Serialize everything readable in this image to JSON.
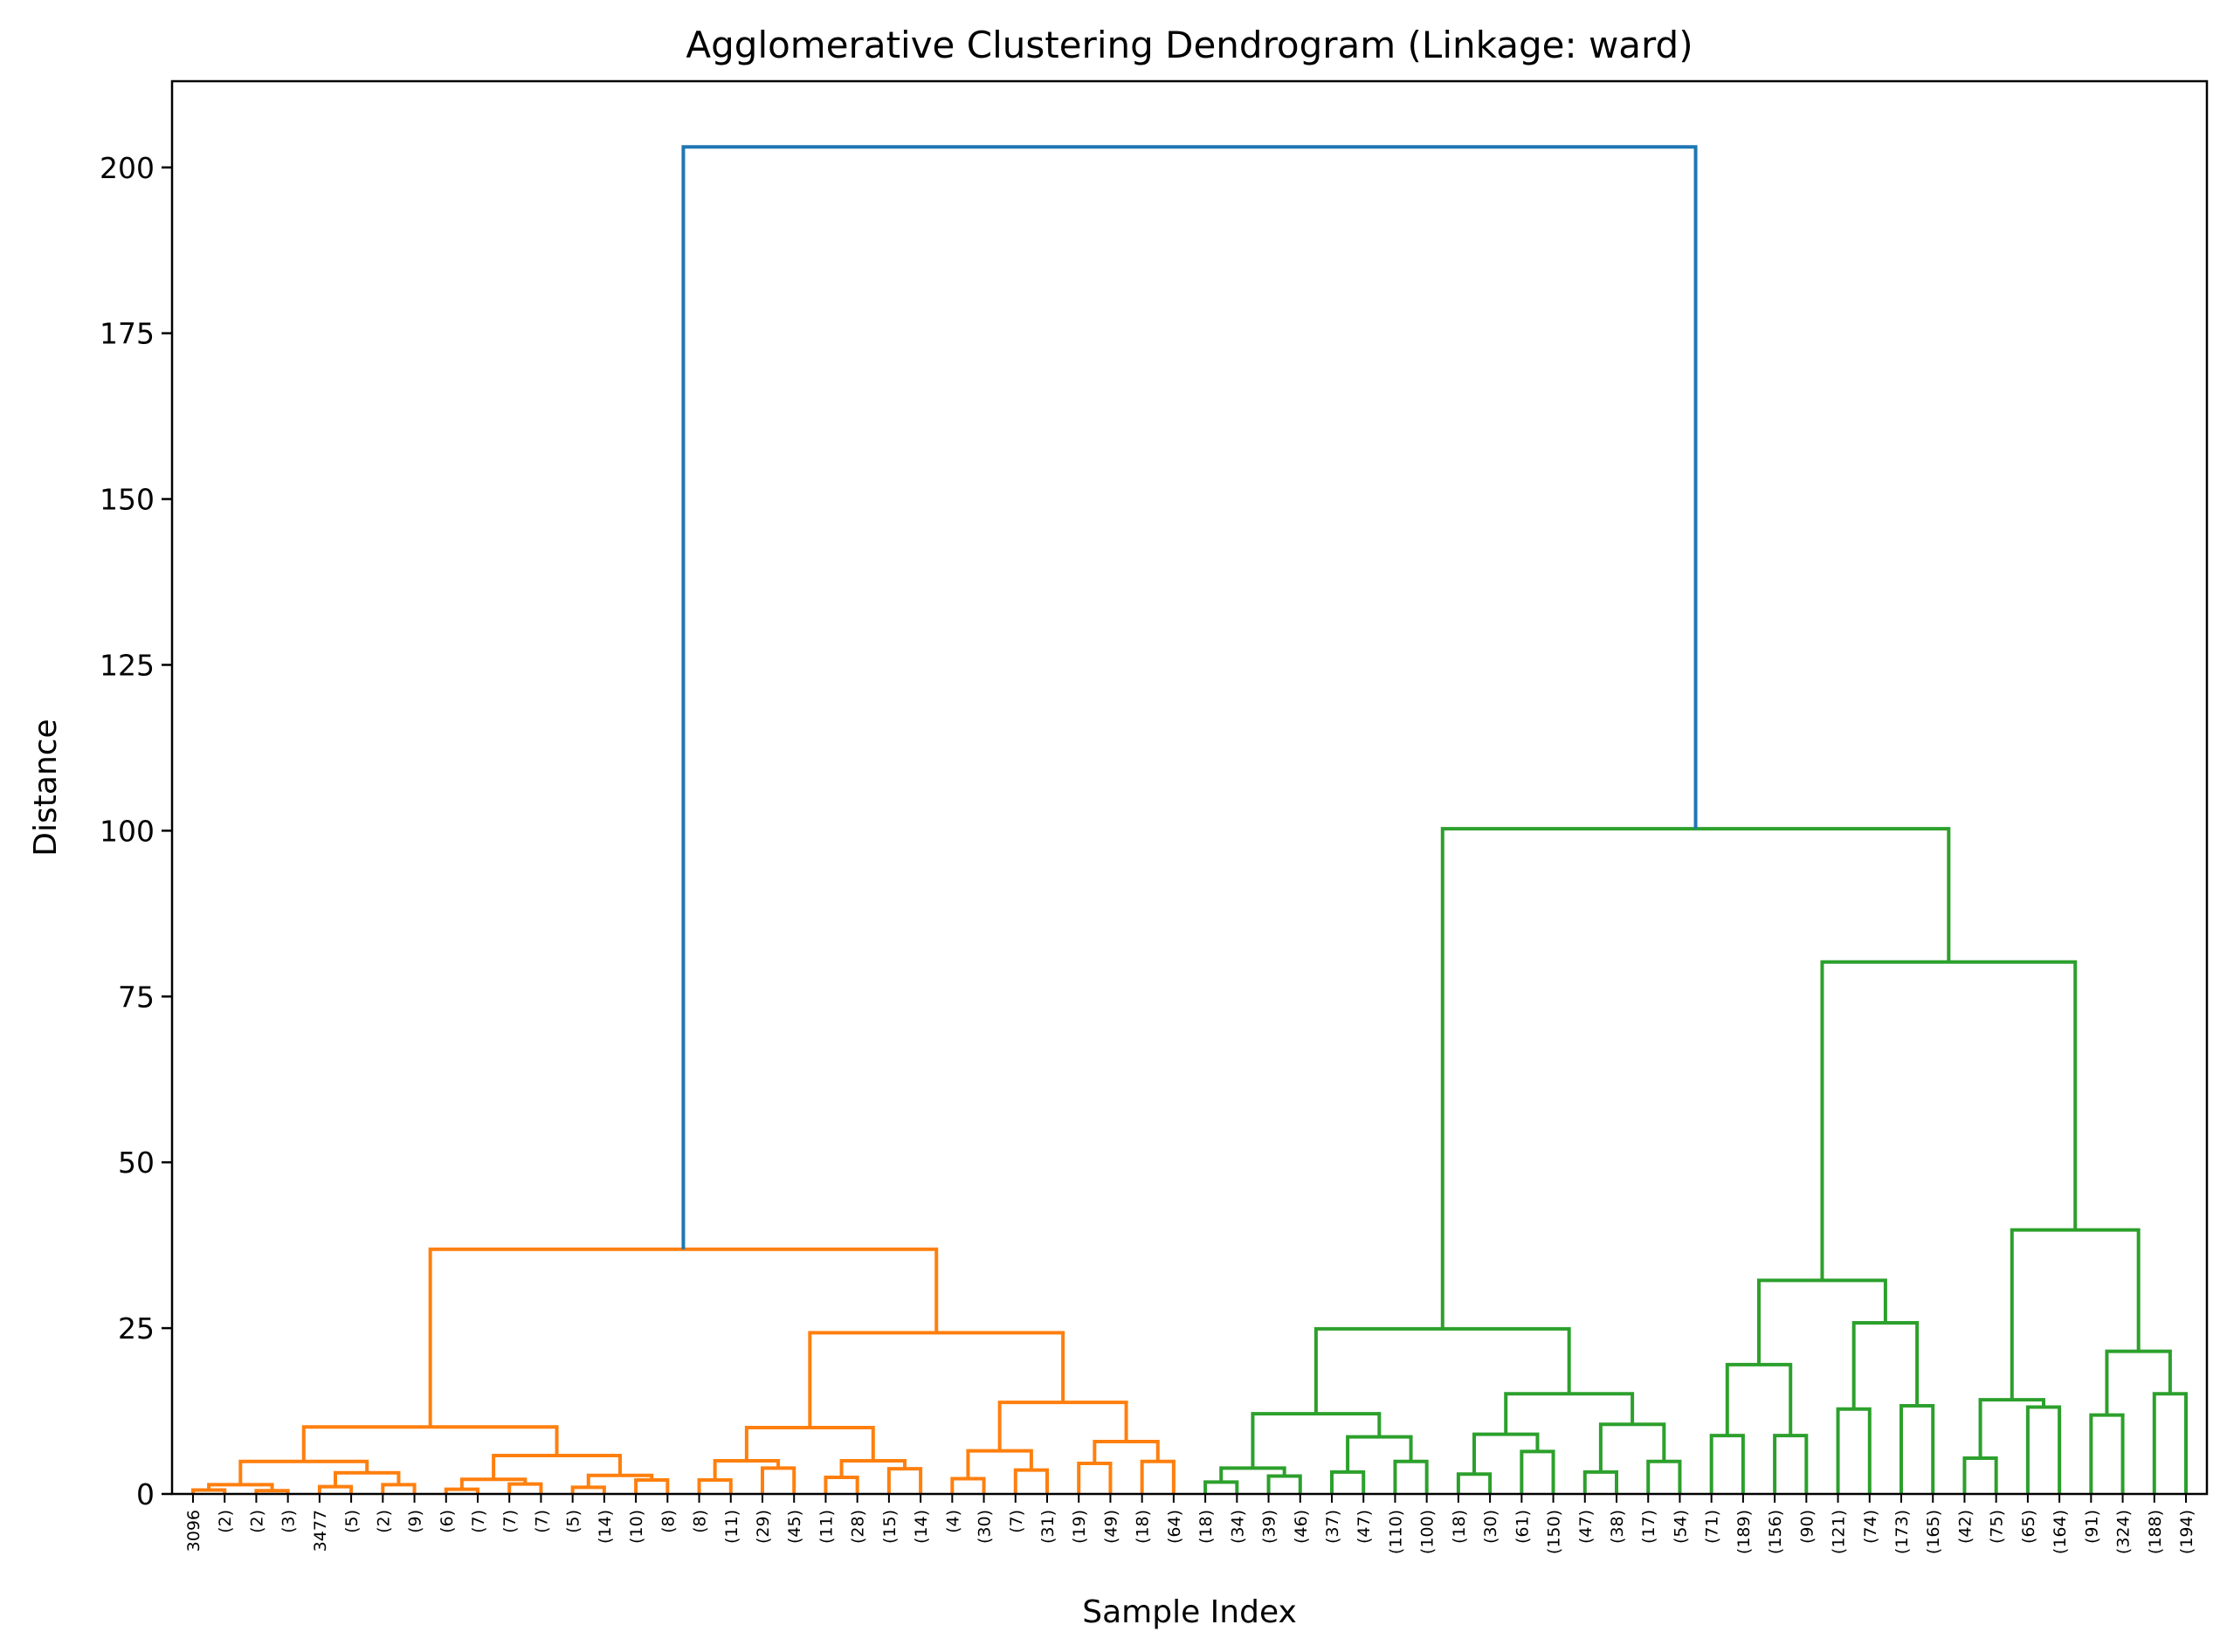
{
  "chart_data": {
    "type": "dendrogram",
    "title": "Agglomerative Clustering Dendrogram (Linkage: ward)",
    "xlabel": "Sample Index",
    "ylabel": "Distance",
    "ylim": [
      0,
      213
    ],
    "yticks": [
      0,
      25,
      50,
      75,
      100,
      125,
      150,
      175,
      200
    ],
    "grid": false,
    "colors": {
      "root": "#1f77b4",
      "cluster1": "#ff7f0e",
      "cluster2": "#2ca02c"
    },
    "leaves": [
      "3096",
      "(2)",
      "(2)",
      "(3)",
      "3477",
      "(5)",
      "(2)",
      "(9)",
      "(6)",
      "(7)",
      "(7)",
      "(7)",
      "(5)",
      "(14)",
      "(10)",
      "(8)",
      "(8)",
      "(11)",
      "(29)",
      "(45)",
      "(11)",
      "(28)",
      "(15)",
      "(14)",
      "(4)",
      "(30)",
      "(7)",
      "(31)",
      "(19)",
      "(49)",
      "(18)",
      "(64)",
      "(18)",
      "(34)",
      "(39)",
      "(46)",
      "(37)",
      "(47)",
      "(110)",
      "(100)",
      "(18)",
      "(30)",
      "(61)",
      "(150)",
      "(47)",
      "(38)",
      "(17)",
      "(54)",
      "(71)",
      "(189)",
      "(156)",
      "(90)",
      "(121)",
      "(74)",
      "(173)",
      "(165)",
      "(42)",
      "(75)",
      "(65)",
      "(164)",
      "(91)",
      "(324)",
      "(188)",
      "(194)"
    ],
    "links": [
      {
        "left": 0,
        "right": 1,
        "height": 0.6,
        "color": "cluster1"
      },
      {
        "left": 2,
        "right": 3,
        "height": 0.5,
        "color": "cluster1"
      },
      {
        "left": "L0",
        "right": "L1",
        "height": 1.4,
        "color": "cluster1"
      },
      {
        "left": 4,
        "right": 5,
        "height": 1.1,
        "color": "cluster1"
      },
      {
        "left": 6,
        "right": 7,
        "height": 1.4,
        "color": "cluster1"
      },
      {
        "left": "L3",
        "right": "L4",
        "height": 3.2,
        "color": "cluster1"
      },
      {
        "left": "L2",
        "right": "L5",
        "height": 4.9,
        "color": "cluster1"
      },
      {
        "left": 8,
        "right": 9,
        "height": 0.7,
        "color": "cluster1"
      },
      {
        "left": 10,
        "right": 11,
        "height": 1.5,
        "color": "cluster1"
      },
      {
        "left": "L7",
        "right": "L8",
        "height": 2.2,
        "color": "cluster1"
      },
      {
        "left": 12,
        "right": 13,
        "height": 1.0,
        "color": "cluster1"
      },
      {
        "left": 14,
        "right": 15,
        "height": 2.1,
        "color": "cluster1"
      },
      {
        "left": "L10",
        "right": "L11",
        "height": 2.8,
        "color": "cluster1"
      },
      {
        "left": "L9",
        "right": "L12",
        "height": 5.8,
        "color": "cluster1"
      },
      {
        "left": "L6",
        "right": "L13",
        "height": 10.1,
        "color": "cluster1"
      },
      {
        "left": 16,
        "right": 17,
        "height": 2.1,
        "color": "cluster1"
      },
      {
        "left": 18,
        "right": 19,
        "height": 3.9,
        "color": "cluster1"
      },
      {
        "left": "L15",
        "right": "L16",
        "height": 5.0,
        "color": "cluster1"
      },
      {
        "left": 20,
        "right": 21,
        "height": 2.5,
        "color": "cluster1"
      },
      {
        "left": 22,
        "right": 23,
        "height": 3.8,
        "color": "cluster1"
      },
      {
        "left": "L18",
        "right": "L19",
        "height": 5.0,
        "color": "cluster1"
      },
      {
        "left": "L17",
        "right": "L20",
        "height": 10.0,
        "color": "cluster1"
      },
      {
        "left": 24,
        "right": 25,
        "height": 2.3,
        "color": "cluster1"
      },
      {
        "left": 26,
        "right": 27,
        "height": 3.6,
        "color": "cluster1"
      },
      {
        "left": "L22",
        "right": "L23",
        "height": 6.5,
        "color": "cluster1"
      },
      {
        "left": 28,
        "right": 29,
        "height": 4.6,
        "color": "cluster1"
      },
      {
        "left": 30,
        "right": 31,
        "height": 4.9,
        "color": "cluster1"
      },
      {
        "left": "L25",
        "right": "L26",
        "height": 7.9,
        "color": "cluster1"
      },
      {
        "left": "L24",
        "right": "L27",
        "height": 13.8,
        "color": "cluster1"
      },
      {
        "left": "L21",
        "right": "L28",
        "height": 24.3,
        "color": "cluster1"
      },
      {
        "left": "L14",
        "right": "L29",
        "height": 36.9,
        "color": "cluster1"
      },
      {
        "left": 32,
        "right": 33,
        "height": 1.8,
        "color": "cluster2"
      },
      {
        "left": 34,
        "right": 35,
        "height": 2.7,
        "color": "cluster2"
      },
      {
        "left": "L31",
        "right": "L32",
        "height": 3.9,
        "color": "cluster2"
      },
      {
        "left": 36,
        "right": 37,
        "height": 3.3,
        "color": "cluster2"
      },
      {
        "left": 38,
        "right": 39,
        "height": 4.9,
        "color": "cluster2"
      },
      {
        "left": "L34",
        "right": "L35",
        "height": 8.6,
        "color": "cluster2"
      },
      {
        "left": "L33",
        "right": "L36",
        "height": 12.1,
        "color": "cluster2"
      },
      {
        "left": 40,
        "right": 41,
        "height": 3.0,
        "color": "cluster2"
      },
      {
        "left": 42,
        "right": 43,
        "height": 6.4,
        "color": "cluster2"
      },
      {
        "left": "L38",
        "right": "L39",
        "height": 9.0,
        "color": "cluster2"
      },
      {
        "left": 44,
        "right": 45,
        "height": 3.3,
        "color": "cluster2"
      },
      {
        "left": 46,
        "right": 47,
        "height": 4.9,
        "color": "cluster2"
      },
      {
        "left": "L41",
        "right": "L42",
        "height": 10.5,
        "color": "cluster2"
      },
      {
        "left": "L40",
        "right": "L43",
        "height": 15.1,
        "color": "cluster2"
      },
      {
        "left": "L37",
        "right": "L44",
        "height": 24.9,
        "color": "cluster2"
      },
      {
        "left": 48,
        "right": 49,
        "height": 8.8,
        "color": "cluster2"
      },
      {
        "left": 50,
        "right": 51,
        "height": 8.8,
        "color": "cluster2"
      },
      {
        "left": "L46",
        "right": "L47",
        "height": 19.5,
        "color": "cluster2"
      },
      {
        "left": 52,
        "right": 53,
        "height": 12.8,
        "color": "cluster2"
      },
      {
        "left": 54,
        "right": 55,
        "height": 13.3,
        "color": "cluster2"
      },
      {
        "left": "L49",
        "right": "L50",
        "height": 25.8,
        "color": "cluster2"
      },
      {
        "left": "L48",
        "right": "L51",
        "height": 32.2,
        "color": "cluster2"
      },
      {
        "left": 56,
        "right": 57,
        "height": 5.4,
        "color": "cluster2"
      },
      {
        "left": 58,
        "right": 59,
        "height": 13.1,
        "color": "cluster2"
      },
      {
        "left": "L53",
        "right": "L54",
        "height": 14.2,
        "color": "cluster2"
      },
      {
        "left": 60,
        "right": 61,
        "height": 11.9,
        "color": "cluster2"
      },
      {
        "left": 62,
        "right": 63,
        "height": 15.1,
        "color": "cluster2"
      },
      {
        "left": "L56",
        "right": "L57",
        "height": 21.5,
        "color": "cluster2"
      },
      {
        "left": "L55",
        "right": "L58",
        "height": 39.8,
        "color": "cluster2"
      },
      {
        "left": "L52",
        "right": "L59",
        "height": 80.2,
        "color": "cluster2"
      },
      {
        "left": "L45",
        "right": "L60",
        "height": 100.3,
        "color": "cluster2"
      },
      {
        "left": "L30",
        "right": "L61",
        "height": 203.1,
        "color": "root"
      }
    ]
  }
}
